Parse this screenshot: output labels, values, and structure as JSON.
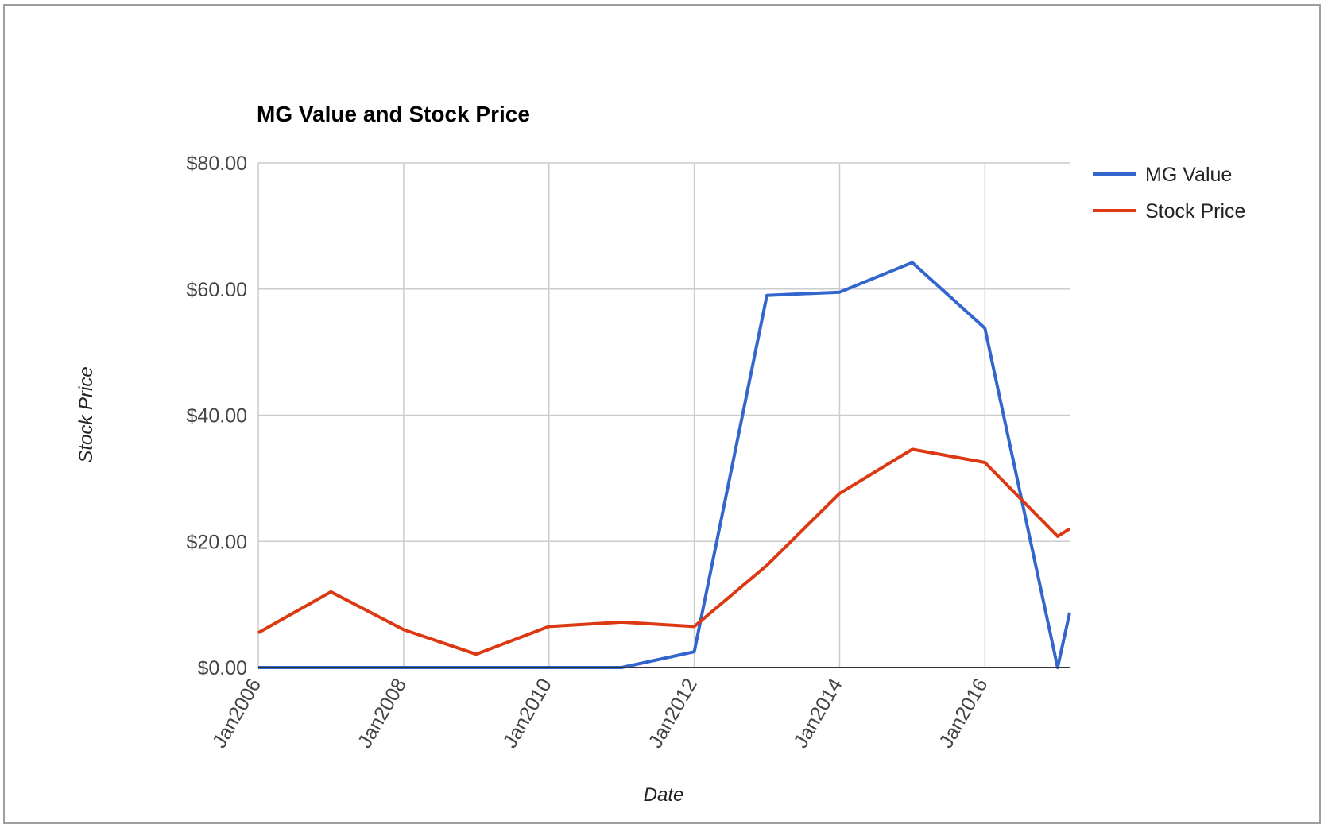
{
  "chart_data": {
    "type": "line",
    "title": "MG Value and Stock Price",
    "xlabel": "Date",
    "ylabel": "Stock Price",
    "x_ticks": [
      "Jan2006",
      "Jan2008",
      "Jan2010",
      "Jan2012",
      "Jan2014",
      "Jan2016"
    ],
    "y_ticks": [
      "$0.00",
      "$20.00",
      "$40.00",
      "$60.00",
      "$80.00"
    ],
    "ylim": [
      0,
      80
    ],
    "xlim": [
      "2006-01",
      "2017-03"
    ],
    "grid": true,
    "legend_position": "right",
    "x": [
      "2006-01",
      "2007-01",
      "2008-01",
      "2009-01",
      "2010-01",
      "2011-01",
      "2012-01",
      "2013-01",
      "2014-01",
      "2015-01",
      "2016-01",
      "2017-01",
      "2017-03"
    ],
    "series": [
      {
        "name": "MG Value",
        "color": "#3366cc",
        "values": [
          0,
          0,
          0,
          0,
          0,
          0,
          2.5,
          59,
          59.5,
          64.2,
          53.8,
          0,
          8.7
        ]
      },
      {
        "name": "Stock Price",
        "color": "#dc3912",
        "values": [
          5.5,
          12,
          6,
          2.1,
          6.5,
          7.2,
          6.5,
          16.2,
          27.6,
          34.6,
          32.5,
          20.8,
          22
        ]
      }
    ]
  }
}
